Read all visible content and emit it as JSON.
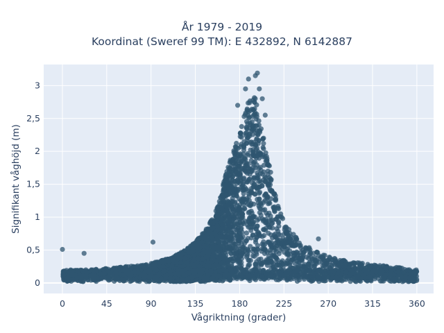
{
  "chart_data": {
    "type": "scatter",
    "title_lines": [
      "År 1979 - 2019",
      "Koordinat (Sweref 99 TM): E 432892, N 6142887"
    ],
    "xlabel": "Vågriktning (grader)",
    "ylabel": "Signifikant våghöjd (m)",
    "xlim": [
      -19,
      377
    ],
    "ylim": [
      -0.16,
      3.32
    ],
    "x_ticks": [
      0,
      45,
      90,
      135,
      180,
      225,
      270,
      315,
      360
    ],
    "x_tick_labels": [
      "0",
      "45",
      "90",
      "135",
      "180",
      "225",
      "270",
      "315",
      "360"
    ],
    "y_ticks": [
      0,
      0.5,
      1,
      1.5,
      2,
      2.5,
      3
    ],
    "y_tick_labels": [
      "0",
      "0,5",
      "1",
      "1,5",
      "2",
      "2,5",
      "3"
    ],
    "grid": true,
    "plot_background": "#e5ecf6",
    "marker_color": "#2f5570",
    "envelope": {
      "description": "upper envelope of the dense point cloud (direction in degrees, height in m)",
      "x": [
        0,
        20,
        45,
        70,
        90,
        110,
        125,
        135,
        145,
        155,
        160,
        165,
        170,
        175,
        180,
        185,
        190,
        195,
        200,
        205,
        210,
        215,
        220,
        225,
        235,
        245,
        255,
        270,
        290,
        315,
        340,
        360
      ],
      "y": [
        0.18,
        0.2,
        0.22,
        0.26,
        0.3,
        0.38,
        0.5,
        0.62,
        0.8,
        1.05,
        1.3,
        1.6,
        1.85,
        2.05,
        2.3,
        2.6,
        2.8,
        2.85,
        2.6,
        2.15,
        1.8,
        1.45,
        1.15,
        0.95,
        0.75,
        0.6,
        0.5,
        0.4,
        0.33,
        0.28,
        0.24,
        0.18
      ]
    },
    "notable_points": [
      {
        "x": 0,
        "y": 0.51
      },
      {
        "x": 92,
        "y": 0.62
      },
      {
        "x": 22,
        "y": 0.45
      },
      {
        "x": 178,
        "y": 2.7
      },
      {
        "x": 186,
        "y": 2.95
      },
      {
        "x": 189,
        "y": 3.1
      },
      {
        "x": 196,
        "y": 3.15
      },
      {
        "x": 198,
        "y": 3.19
      },
      {
        "x": 200,
        "y": 2.95
      },
      {
        "x": 203,
        "y": 2.8
      },
      {
        "x": 206,
        "y": 2.55
      },
      {
        "x": 260,
        "y": 0.67
      }
    ]
  }
}
